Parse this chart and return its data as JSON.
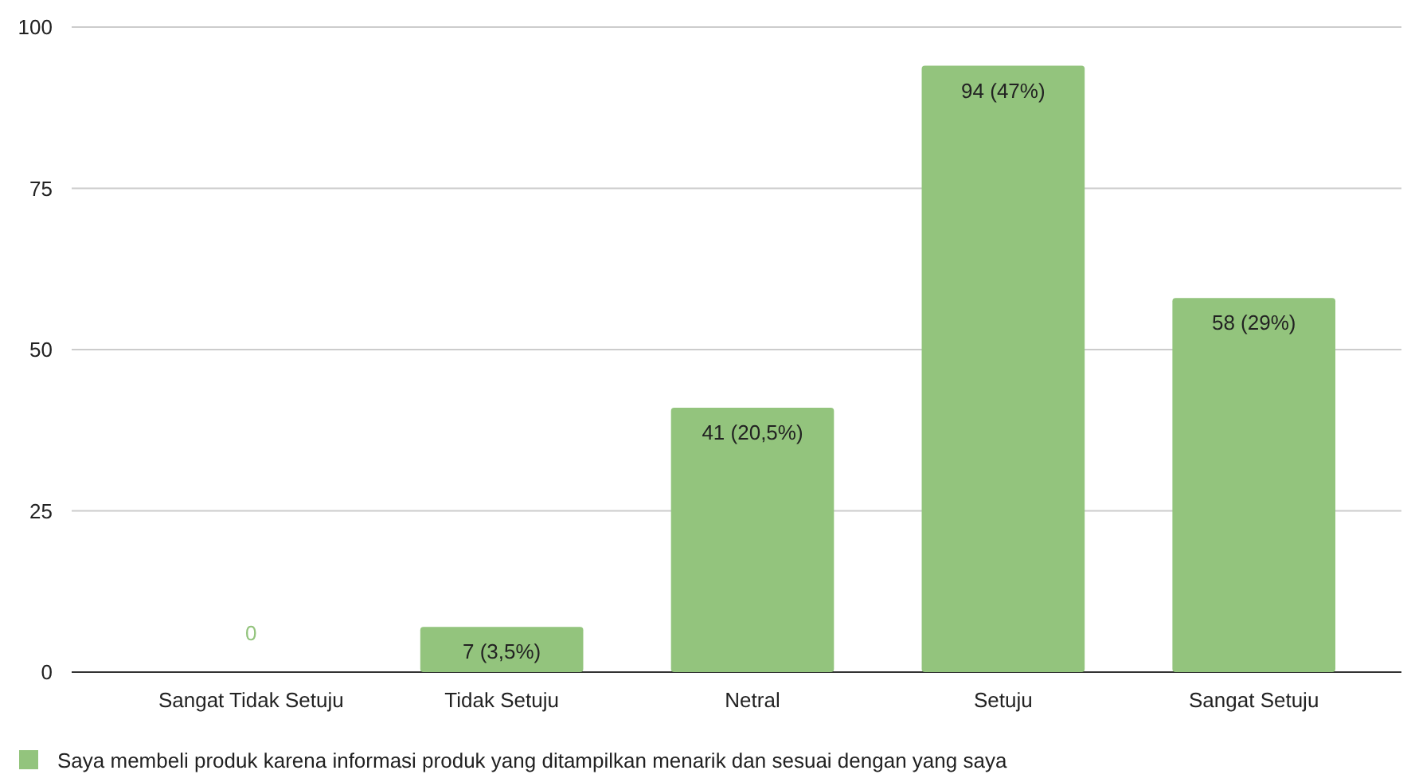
{
  "chart_data": {
    "type": "bar",
    "categories": [
      "Sangat Tidak Setuju",
      "Tidak Setuju",
      "Netral",
      "Setuju",
      "Sangat Setuju"
    ],
    "series": [
      {
        "name": "Saya membeli produk karena informasi produk yang ditampilkan menarik dan sesuai dengan yang saya",
        "color": "#93c47d",
        "values": [
          0,
          7,
          41,
          94,
          58
        ],
        "value_labels": [
          "0",
          "7 (3,5%)",
          "41 (20,5%)",
          "94 (47%)",
          "58 (29%)"
        ]
      }
    ],
    "ylim": [
      0,
      100
    ],
    "yticks": [
      0,
      25,
      50,
      75,
      100
    ],
    "grid": "y",
    "legend": "bottom"
  }
}
